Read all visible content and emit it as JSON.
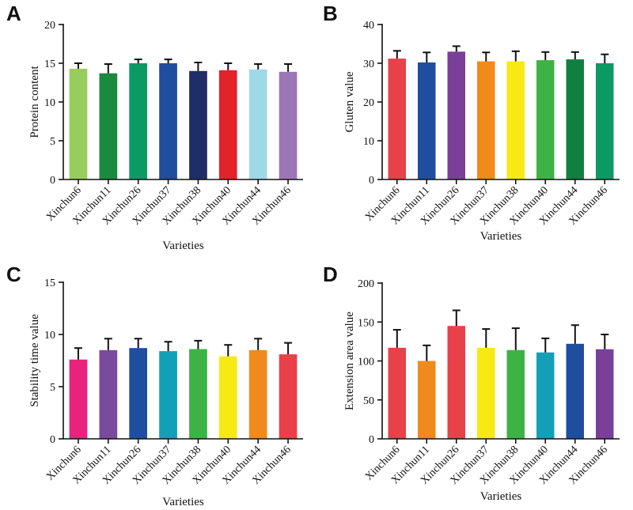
{
  "chart_data": [
    {
      "panel": "A",
      "type": "bar",
      "categories": [
        "Xinchun6",
        "Xinchun11",
        "Xinchun26",
        "Xinchun37",
        "Xinchun38",
        "Xinchun40",
        "Xinchun44",
        "Xinchun46"
      ],
      "values": [
        14.3,
        13.7,
        15.0,
        15.0,
        14.0,
        14.1,
        14.2,
        13.9
      ],
      "errors": [
        0.7,
        1.2,
        0.5,
        0.5,
        1.1,
        0.9,
        0.7,
        1.0
      ],
      "colors": [
        "#99cc5e",
        "#1a8a3e",
        "#0b9a64",
        "#1f4e9e",
        "#1f2e66",
        "#e2232a",
        "#9fd8e6",
        "#9b76b5"
      ],
      "xlabel": "Varieties",
      "ylabel": "Protein content",
      "ylim": [
        0,
        20
      ],
      "yticks": [
        0,
        5,
        10,
        15,
        20
      ]
    },
    {
      "panel": "B",
      "type": "bar",
      "categories": [
        "Xinchun6",
        "Xinchun11",
        "Xinchun26",
        "Xinchun37",
        "Xinchun38",
        "Xinchun40",
        "Xinchun44",
        "Xinchun46"
      ],
      "values": [
        31.2,
        30.2,
        33.0,
        30.5,
        30.5,
        30.8,
        31.0,
        30.0
      ],
      "errors": [
        2.0,
        2.6,
        1.4,
        2.3,
        2.6,
        2.1,
        1.9,
        2.3
      ],
      "colors": [
        "#e8414a",
        "#1f4e9e",
        "#7a3f98",
        "#f08a1c",
        "#f6ea12",
        "#3cb344",
        "#0f8040",
        "#0b9a64"
      ],
      "xlabel": "Varieties",
      "ylabel": "Gluten value",
      "ylim": [
        0,
        40
      ],
      "yticks": [
        0,
        10,
        20,
        30,
        40
      ]
    },
    {
      "panel": "C",
      "type": "bar",
      "categories": [
        "Xinchun6",
        "Xinchun11",
        "Xinchun26",
        "Xinchun37",
        "Xinchun38",
        "Xinchun40",
        "Xinchun44",
        "Xinchun46"
      ],
      "values": [
        7.6,
        8.5,
        8.7,
        8.4,
        8.6,
        7.9,
        8.5,
        8.1
      ],
      "errors": [
        1.1,
        1.1,
        0.9,
        0.9,
        0.8,
        1.1,
        1.1,
        1.1
      ],
      "colors": [
        "#e8237e",
        "#7a4a9e",
        "#1f4e9e",
        "#12a0b9",
        "#3cb344",
        "#f6ea12",
        "#f08a1c",
        "#e8414a"
      ],
      "xlabel": "Varieties",
      "ylabel": "Stability time value",
      "ylim": [
        0,
        15
      ],
      "yticks": [
        0,
        5,
        10,
        15
      ]
    },
    {
      "panel": "D",
      "type": "bar",
      "categories": [
        "Xinchun6",
        "Xinchun11",
        "Xinchun26",
        "Xinchun37",
        "Xinchun38",
        "Xinchun40",
        "Xinchun44",
        "Xinchun46"
      ],
      "values": [
        117,
        100,
        145,
        117,
        114,
        111,
        122,
        115
      ],
      "errors": [
        23,
        20,
        20,
        24,
        28,
        18,
        24,
        19
      ],
      "colors": [
        "#e8414a",
        "#f08a1c",
        "#e8414a",
        "#f6ea12",
        "#3cb344",
        "#12a0b9",
        "#1f4e9e",
        "#7a3f98"
      ],
      "xlabel": "Varieties",
      "ylabel": "Extension area value",
      "ylim": [
        0,
        200
      ],
      "yticks": [
        0,
        50,
        100,
        150,
        200
      ]
    }
  ]
}
